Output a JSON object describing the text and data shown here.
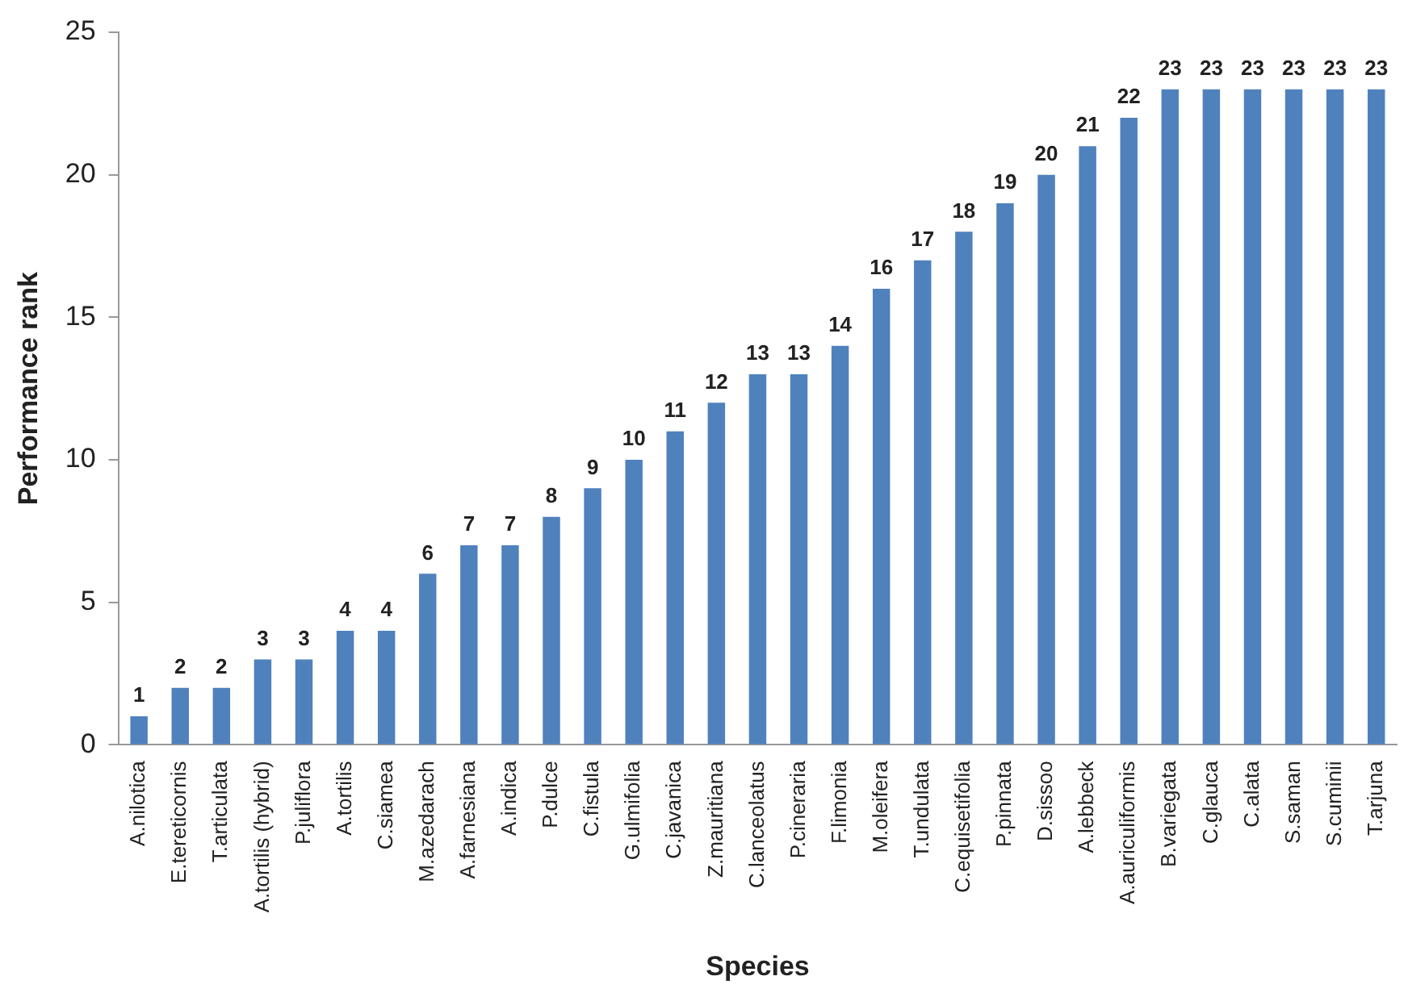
{
  "chart_data": {
    "type": "bar",
    "xlabel": "Species",
    "ylabel": "Performance rank",
    "categories": [
      "A.nilotica",
      "E.tereticornis",
      "T.articulata",
      "A.tortilis (hybrid)",
      "P.juliflora",
      "A.tortilis",
      "C.siamea",
      "M.azedarach",
      "A.farnesiana",
      "A.indica",
      "P.dulce",
      "C.fistula",
      "G.ulmifolia",
      "C.javanica",
      "Z.mauritiana",
      "C.lanceolatus",
      "P.cineraria",
      "F.limonia",
      "M.oleifera",
      "T.undulata",
      "C.equisetifolia",
      "P.pinnata",
      "D.sissoo",
      "A.lebbeck",
      "A.auriculiformis",
      "B.variegata",
      "C.glauca",
      "C.alata",
      "S.saman",
      "S.cuminii",
      "T.arjuna"
    ],
    "values": [
      1,
      2,
      2,
      3,
      3,
      4,
      4,
      6,
      7,
      7,
      8,
      9,
      10,
      11,
      12,
      13,
      13,
      14,
      16,
      17,
      18,
      19,
      20,
      21,
      22,
      23,
      23,
      23,
      23,
      23,
      23
    ],
    "color": "#4f81bd",
    "ylim": [
      0,
      25
    ],
    "yticks": [
      0,
      5,
      10,
      15,
      20,
      25
    ],
    "grid": false,
    "legend": false,
    "data_labels": true
  }
}
